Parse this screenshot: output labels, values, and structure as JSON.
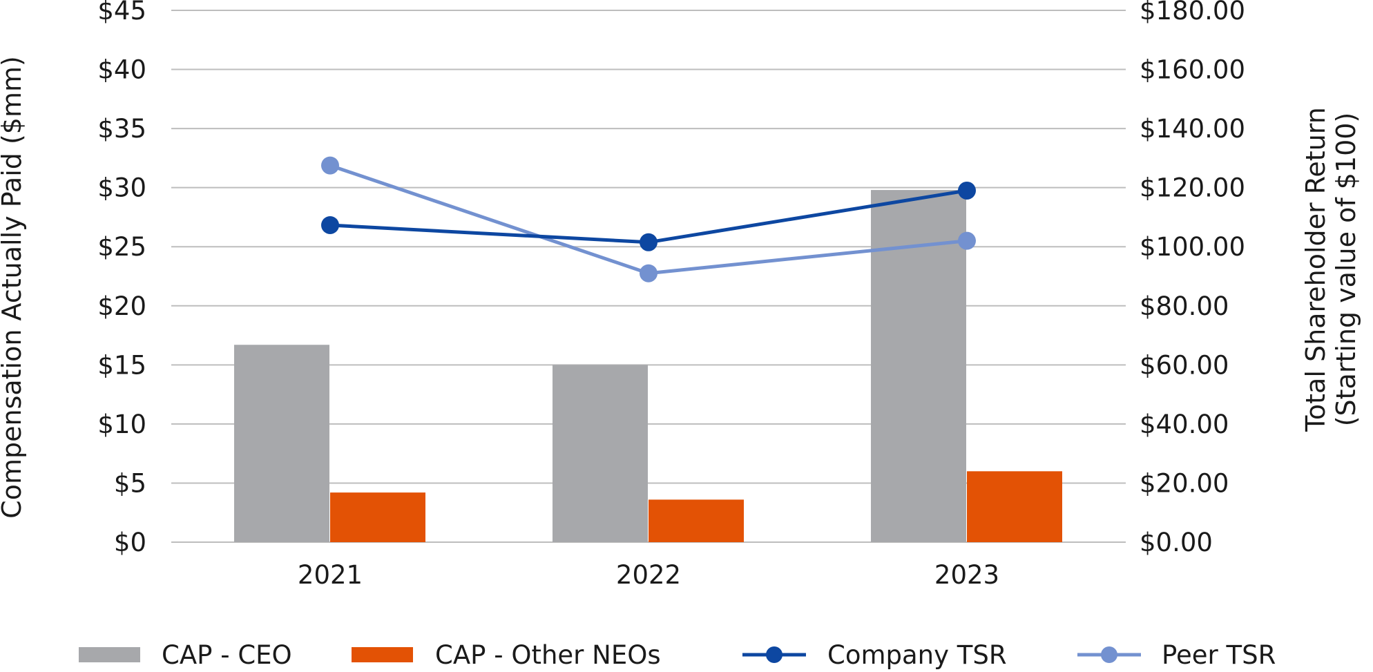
{
  "chart_data": {
    "type": "bar",
    "categories": [
      "2021",
      "2022",
      "2023"
    ],
    "series": [
      {
        "name": "CAP - CEO",
        "kind": "bar",
        "axis": "left",
        "color": "#a7a8ab",
        "values": [
          16.7,
          15.0,
          29.8
        ]
      },
      {
        "name": "CAP - Other NEOs",
        "kind": "bar",
        "axis": "left",
        "color": "#e35205",
        "values": [
          4.2,
          3.6,
          6.0
        ]
      },
      {
        "name": "Company TSR",
        "kind": "line",
        "axis": "right",
        "color": "#0d47a1",
        "values": [
          107.3,
          101.5,
          119.0
        ]
      },
      {
        "name": "Peer TSR",
        "kind": "line",
        "axis": "right",
        "color": "#7391d0",
        "values": [
          127.5,
          91.0,
          102.0
        ]
      }
    ],
    "ylabel": "Compensation Actually Paid ($mm)",
    "y2label": [
      "Total Shareholder Return",
      "(Starting value of $100)"
    ],
    "ylim": [
      0,
      45
    ],
    "y2lim": [
      0,
      180
    ],
    "yticks": [
      "$0",
      "$5",
      "$10",
      "$15",
      "$20",
      "$25",
      "$30",
      "$35",
      "$40",
      "$45"
    ],
    "y2ticks": [
      "$0.00",
      "$20.00",
      "$40.00",
      "$60.00",
      "$80.00",
      "$100.00",
      "$120.00",
      "$140.00",
      "$160.00",
      "$180.00"
    ],
    "grid": true,
    "legend_position": "bottom"
  }
}
